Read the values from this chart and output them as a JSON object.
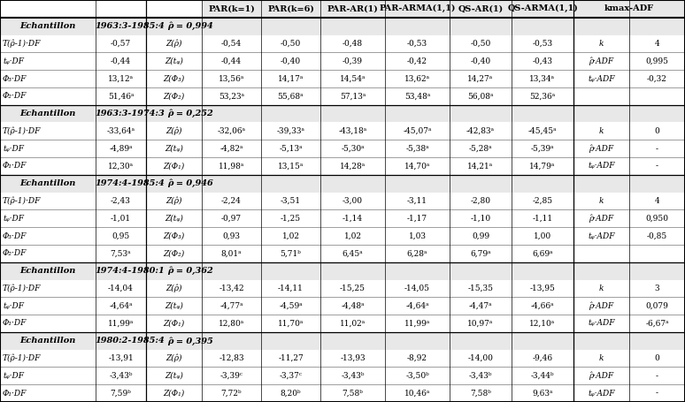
{
  "sections": [
    {
      "header": [
        "Echantillon",
        "1963:3-1985:4",
        "ρ̂ = 0,994"
      ],
      "rows": [
        [
          "T(ρ̂-1)·DF",
          "-0,57",
          "Z(ρ̂)",
          "-0,54",
          "-0,50",
          "-0,48",
          "-0,53",
          "-0,50",
          "-0,53",
          "k",
          "4"
        ],
        [
          "tᵩ·DF",
          "-0,44",
          "Z(tᵩ)",
          "-0,44",
          "-0,40",
          "-0,39",
          "-0,42",
          "-0,40",
          "-0,43",
          "ρ̂·ADF",
          "0,995"
        ],
        [
          "Φ₃·DF",
          "13,12ᵃ",
          "Z(Φ₃)",
          "13,56ᵃ",
          "14,17ᵃ",
          "14,54ᵃ",
          "13,62ᵃ",
          "14,27ᵃ",
          "13,34ᵃ",
          "tᵩ·ADF",
          "-0,32"
        ],
        [
          "Φ₂·DF",
          "51,46ᵃ",
          "Z(Φ₂)",
          "53,23ᵃ",
          "55,68ᵃ",
          "57,13ᵃ",
          "53,48ᵃ",
          "56,08ᵃ",
          "52,36ᵃ",
          "",
          ""
        ]
      ]
    },
    {
      "header": [
        "Echantillon",
        "1963:3-1974:3",
        "ρ̂ = 0,252"
      ],
      "rows": [
        [
          "T(ρ̂-1)·DF",
          "-33,64ᵃ",
          "Z(ρ̂)",
          "-32,06ᵃ",
          "-39,33ᵃ",
          "-43,18ᵃ",
          "-45,07ᵃ",
          "-42,83ᵃ",
          "-45,45ᵃ",
          "k",
          "0"
        ],
        [
          "tᵩ·DF",
          "-4,89ᵃ",
          "Z(tᵩ)",
          "-4,82ᵃ",
          "-5,13ᵃ",
          "-5,30ᵃ",
          "-5,38ᵃ",
          "-5,28ᵃ",
          "-5,39ᵃ",
          "ρ̂·ADF",
          "-"
        ],
        [
          "Φ₁·DF",
          "12,30ᵃ",
          "Z(Φ₁)",
          "11,98ᵃ",
          "13,15ᵃ",
          "14,28ᵃ",
          "14,70ᵃ",
          "14,21ᵃ",
          "14,79ᵃ",
          "tᵩ·ADF",
          "-"
        ]
      ]
    },
    {
      "header": [
        "Echantillon",
        "1974:4-1985:4",
        "ρ̂ = 0,946"
      ],
      "rows": [
        [
          "T(ρ̂-1)·DF",
          "-2,43",
          "Z(ρ̂)",
          "-2,24",
          "-3,51",
          "-3,00",
          "-3,11",
          "-2,80",
          "-2,85",
          "k",
          "4"
        ],
        [
          "tᵩ·DF",
          "-1,01",
          "Z(tᵩ)",
          "-0,97",
          "-1,25",
          "-1,14",
          "-1,17",
          "-1,10",
          "-1,11",
          "ρ̂·ADF",
          "0,950"
        ],
        [
          "Φ₃·DF",
          "0,95",
          "Z(Φ₃)",
          "0,93",
          "1,02",
          "1,02",
          "1,03",
          "0,99",
          "1,00",
          "tᵩ·ADF",
          "-0,85"
        ],
        [
          "Φ₂·DF",
          "7,53ᵃ",
          "Z(Φ₂)",
          "8,01ᵃ",
          "5,71ᵇ",
          "6,45ᵃ",
          "6,28ᵃ",
          "6,79ᵃ",
          "6,69ᵃ",
          "",
          ""
        ]
      ]
    },
    {
      "header": [
        "Echantillon",
        "1974:4-1980:1",
        "ρ̂ = 0,362"
      ],
      "rows": [
        [
          "T(ρ̂-1)·DF",
          "-14,04",
          "Z(ρ̂)",
          "-13,42",
          "-14,11",
          "-15,25",
          "-14,05",
          "-15,35",
          "-13,95",
          "k",
          "3"
        ],
        [
          "tᵩ·DF",
          "-4,64ᵃ",
          "Z(tᵩ)",
          "-4,77ᵃ",
          "-4,59ᵃ",
          "-4,48ᵃ",
          "-4,64ᵃ",
          "-4,47ᵃ",
          "-4,66ᵃ",
          "ρ̂·ADF",
          "0,079"
        ],
        [
          "Φ₁·DF",
          "11,99ᵃ",
          "Z(Φ₁)",
          "12,80ᵃ",
          "11,70ᵃ",
          "11,02ᵃ",
          "11,99ᵃ",
          "10,97ᵃ",
          "12,10ᵃ",
          "tᵩ·ADF",
          "-6,67ᵃ"
        ]
      ]
    },
    {
      "header": [
        "Echantillon",
        "1980:2-1985:4",
        "ρ̂ = 0,395"
      ],
      "rows": [
        [
          "T(ρ̂-1)·DF",
          "-13,91",
          "Z(ρ̂)",
          "-12,83",
          "-11,27",
          "-13,93",
          "-8,92",
          "-14,00",
          "-9,46",
          "k",
          "0"
        ],
        [
          "tᵩ·DF",
          "-3,43ᵇ",
          "Z(tᵩ)",
          "-3,39ᶜ",
          "-3,37ᶜ",
          "-3,43ᵇ",
          "-3,50ᵇ",
          "-3,43ᵇ",
          "-3,44ᵇ",
          "ρ̂·ADF",
          "-"
        ],
        [
          "Φ₁·DF",
          "7,59ᵇ",
          "Z(Φ₁)",
          "7,72ᵇ",
          "8,20ᵇ",
          "7,58ᵇ",
          "10,46ᵃ",
          "7,58ᵇ",
          "9,63ᵃ",
          "tᵩ·ADF",
          "-"
        ]
      ]
    }
  ],
  "col_headers": [
    "PAR(k=1)",
    "PAR(k=6)",
    "PAR-AR(1)",
    "PAR-ARMA(1,1)",
    "QS-AR(1)",
    "QS-ARMA(1,1)",
    "kmax-ADF"
  ],
  "bg_color": "#e8e8e8",
  "line_color": "black"
}
